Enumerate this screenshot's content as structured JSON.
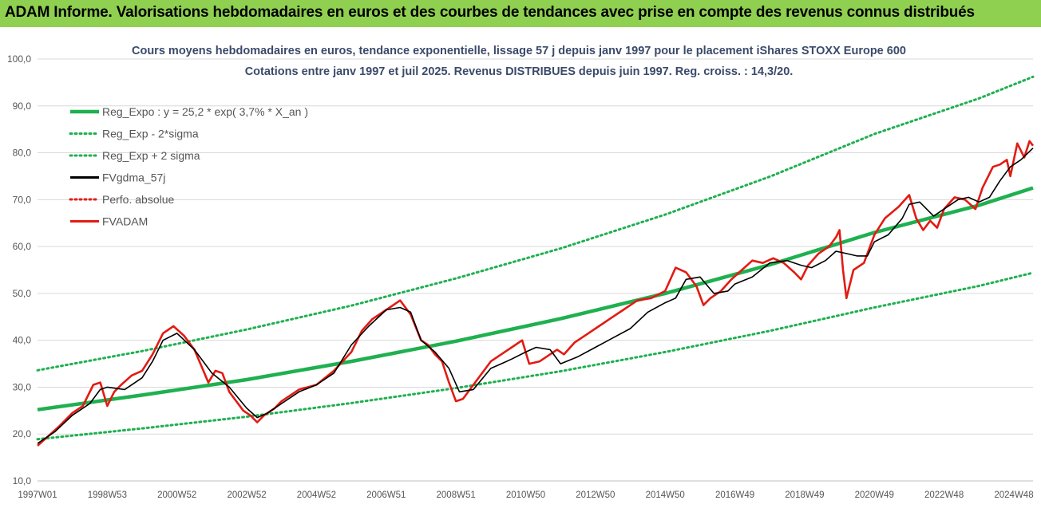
{
  "header": {
    "title": "ADAM Informe. Valorisations hebdomadaires en euros et des courbes de tendances avec prise en compte des revenus connus distribués"
  },
  "chart_data": {
    "type": "line",
    "title": "Cours moyens hebdomadaires en euros, tendance exponentielle, lissage 57 j depuis janv 1997 pour le placement iShares STOXX Europe 600",
    "subtitle": "Cotations entre janv 1997 et juil 2025. Revenus DISTRIBUES depuis juin 1997. Reg. croiss. : 14,3/20.",
    "xlabel": "",
    "ylabel": "",
    "ylim": [
      10,
      100
    ],
    "xlim": [
      1997.0,
      2025.55
    ],
    "y_ticks": [
      "10,0",
      "20,0",
      "30,0",
      "40,0",
      "50,0",
      "60,0",
      "70,0",
      "80,0",
      "90,0",
      "100,0"
    ],
    "x_ticks": [
      {
        "label": "1997W01",
        "x": 1997.0
      },
      {
        "label": "1998W53",
        "x": 1999.0
      },
      {
        "label": "2000W52",
        "x": 2001.0
      },
      {
        "label": "2002W52",
        "x": 2003.0
      },
      {
        "label": "2004W52",
        "x": 2005.0
      },
      {
        "label": "2006W51",
        "x": 2007.0
      },
      {
        "label": "2008W51",
        "x": 2009.0
      },
      {
        "label": "2010W50",
        "x": 2011.0
      },
      {
        "label": "2012W50",
        "x": 2013.0
      },
      {
        "label": "2014W50",
        "x": 2015.0
      },
      {
        "label": "2016W49",
        "x": 2017.0
      },
      {
        "label": "2018W49",
        "x": 2019.0
      },
      {
        "label": "2020W49",
        "x": 2021.0
      },
      {
        "label": "2022W48",
        "x": 2023.0
      },
      {
        "label": "2024W48",
        "x": 2025.0
      }
    ],
    "grid": true,
    "legend_position": "top-left",
    "series": [
      {
        "name": "Reg_Expo : y = 25,2 * exp( 3,7% *  X_an )",
        "color": "#1fb050",
        "style": "solid",
        "x": [
          1997.0,
          2000.0,
          2003.0,
          2006.0,
          2009.0,
          2012.0,
          2015.0,
          2018.0,
          2021.0,
          2024.0,
          2025.55
        ],
        "y": [
          25.2,
          28.3,
          31.6,
          35.5,
          39.8,
          44.6,
          50.0,
          56.1,
          63.0,
          68.8,
          72.5
        ]
      },
      {
        "name": "Reg_Exp - 2*sigma",
        "color": "#1fb050",
        "style": "dotted",
        "x": [
          1997.0,
          2000.0,
          2003.0,
          2006.0,
          2009.0,
          2012.0,
          2015.0,
          2018.0,
          2021.0,
          2024.0,
          2025.55
        ],
        "y": [
          18.9,
          21.2,
          23.7,
          26.6,
          29.8,
          33.4,
          37.5,
          42.0,
          47.0,
          51.6,
          54.4
        ]
      },
      {
        "name": "Reg_Exp + 2 sigma",
        "color": "#1fb050",
        "style": "dotted",
        "x": [
          1997.0,
          2000.0,
          2003.0,
          2006.0,
          2009.0,
          2012.0,
          2015.0,
          2018.0,
          2021.0,
          2024.0,
          2025.55
        ],
        "y": [
          33.6,
          37.7,
          42.3,
          47.4,
          53.2,
          59.6,
          66.8,
          74.9,
          84.0,
          91.6,
          96.2
        ]
      },
      {
        "name": "FVgdma_57j",
        "color": "#000000",
        "style": "solid",
        "x": [
          1997.0,
          1997.5,
          1998.0,
          1998.5,
          1998.8,
          1999.0,
          1999.5,
          2000.0,
          2000.3,
          2000.6,
          2001.0,
          2001.5,
          2002.0,
          2002.5,
          2003.0,
          2003.3,
          2003.6,
          2004.0,
          2004.5,
          2005.0,
          2005.5,
          2006.0,
          2006.5,
          2007.0,
          2007.4,
          2007.7,
          2008.0,
          2008.4,
          2008.8,
          2009.1,
          2009.5,
          2010.0,
          2010.3,
          2010.6,
          2011.0,
          2011.3,
          2011.7,
          2012.0,
          2012.5,
          2013.0,
          2013.5,
          2014.0,
          2014.5,
          2015.0,
          2015.3,
          2015.6,
          2016.0,
          2016.4,
          2016.8,
          2017.0,
          2017.5,
          2018.0,
          2018.5,
          2018.9,
          2019.2,
          2019.6,
          2019.9,
          2020.2,
          2020.5,
          2020.8,
          2021.0,
          2021.4,
          2021.8,
          2022.0,
          2022.3,
          2022.7,
          2023.0,
          2023.4,
          2023.7,
          2024.0,
          2024.3,
          2024.6,
          2024.9,
          2025.2,
          2025.55
        ],
        "y": [
          18.0,
          20.5,
          24.0,
          26.5,
          29.5,
          30.0,
          29.5,
          32.0,
          35.5,
          40.0,
          41.5,
          38.0,
          33.0,
          30.0,
          25.5,
          23.5,
          24.5,
          26.5,
          29.0,
          30.5,
          33.0,
          39.0,
          43.0,
          46.5,
          47.0,
          46.0,
          40.0,
          37.5,
          34.0,
          29.0,
          29.5,
          34.0,
          35.0,
          36.0,
          37.5,
          38.5,
          38.0,
          35.0,
          36.5,
          38.5,
          40.5,
          42.5,
          46.0,
          48.0,
          49.0,
          53.0,
          53.5,
          50.0,
          50.5,
          52.0,
          53.5,
          56.5,
          57.0,
          56.0,
          55.5,
          57.0,
          59.0,
          58.5,
          58.0,
          58.0,
          61.0,
          62.5,
          66.0,
          69.0,
          69.5,
          66.5,
          68.0,
          70.0,
          70.5,
          69.5,
          70.5,
          74.0,
          77.0,
          78.5,
          81.0
        ]
      },
      {
        "name": "Perfo. absolue",
        "color": "#e0201a",
        "style": "dotted",
        "x": [],
        "y": []
      },
      {
        "name": "FVADAM",
        "color": "#e21b13",
        "style": "solid",
        "x": [
          1997.0,
          1997.3,
          1997.6,
          1998.0,
          1998.3,
          1998.6,
          1998.8,
          1999.0,
          1999.2,
          1999.4,
          1999.7,
          2000.0,
          2000.3,
          2000.6,
          2000.9,
          2001.2,
          2001.5,
          2001.7,
          2001.9,
          2002.1,
          2002.3,
          2002.5,
          2002.7,
          2002.9,
          2003.1,
          2003.3,
          2003.5,
          2003.8,
          2004.0,
          2004.5,
          2005.0,
          2005.5,
          2006.0,
          2006.3,
          2006.6,
          2007.0,
          2007.4,
          2007.7,
          2008.0,
          2008.2,
          2008.4,
          2008.6,
          2008.8,
          2009.0,
          2009.2,
          2009.5,
          2009.8,
          2010.0,
          2010.3,
          2010.6,
          2010.9,
          2011.1,
          2011.4,
          2011.7,
          2011.9,
          2012.1,
          2012.4,
          2012.7,
          2013.0,
          2013.4,
          2013.8,
          2014.2,
          2014.6,
          2015.0,
          2015.3,
          2015.6,
          2015.9,
          2016.1,
          2016.3,
          2016.6,
          2016.9,
          2017.2,
          2017.5,
          2017.8,
          2018.1,
          2018.4,
          2018.7,
          2018.9,
          2019.1,
          2019.4,
          2019.7,
          2019.9,
          2020.0,
          2020.1,
          2020.2,
          2020.4,
          2020.7,
          2021.0,
          2021.3,
          2021.7,
          2022.0,
          2022.2,
          2022.4,
          2022.6,
          2022.8,
          2023.0,
          2023.3,
          2023.6,
          2023.9,
          2024.1,
          2024.4,
          2024.6,
          2024.8,
          2024.9,
          2025.1,
          2025.3,
          2025.45,
          2025.55
        ],
        "y": [
          17.5,
          19.5,
          21.5,
          24.5,
          26.0,
          30.5,
          31.0,
          26.0,
          29.0,
          30.5,
          32.5,
          33.5,
          37.0,
          41.5,
          43.0,
          41.0,
          38.0,
          34.5,
          31.0,
          33.5,
          33.0,
          29.0,
          27.0,
          25.0,
          24.0,
          22.5,
          24.0,
          25.5,
          27.0,
          29.5,
          30.5,
          33.5,
          37.5,
          42.0,
          44.5,
          46.5,
          48.5,
          45.5,
          40.0,
          39.0,
          37.0,
          35.5,
          31.0,
          27.0,
          27.5,
          30.5,
          33.5,
          35.5,
          37.0,
          38.5,
          40.0,
          35.0,
          35.5,
          37.0,
          38.0,
          37.0,
          39.5,
          41.0,
          42.5,
          44.5,
          46.5,
          48.5,
          49.0,
          50.5,
          55.5,
          54.5,
          51.5,
          47.5,
          49.0,
          50.5,
          53.0,
          55.0,
          57.0,
          56.5,
          57.5,
          56.5,
          54.5,
          53.0,
          56.0,
          58.5,
          60.0,
          62.0,
          63.5,
          55.0,
          49.0,
          55.0,
          56.5,
          62.5,
          66.0,
          68.5,
          71.0,
          66.0,
          63.5,
          65.5,
          64.0,
          68.0,
          70.5,
          70.0,
          68.0,
          72.5,
          77.0,
          77.5,
          78.5,
          75.0,
          82.0,
          79.0,
          82.5,
          81.5
        ]
      }
    ]
  }
}
